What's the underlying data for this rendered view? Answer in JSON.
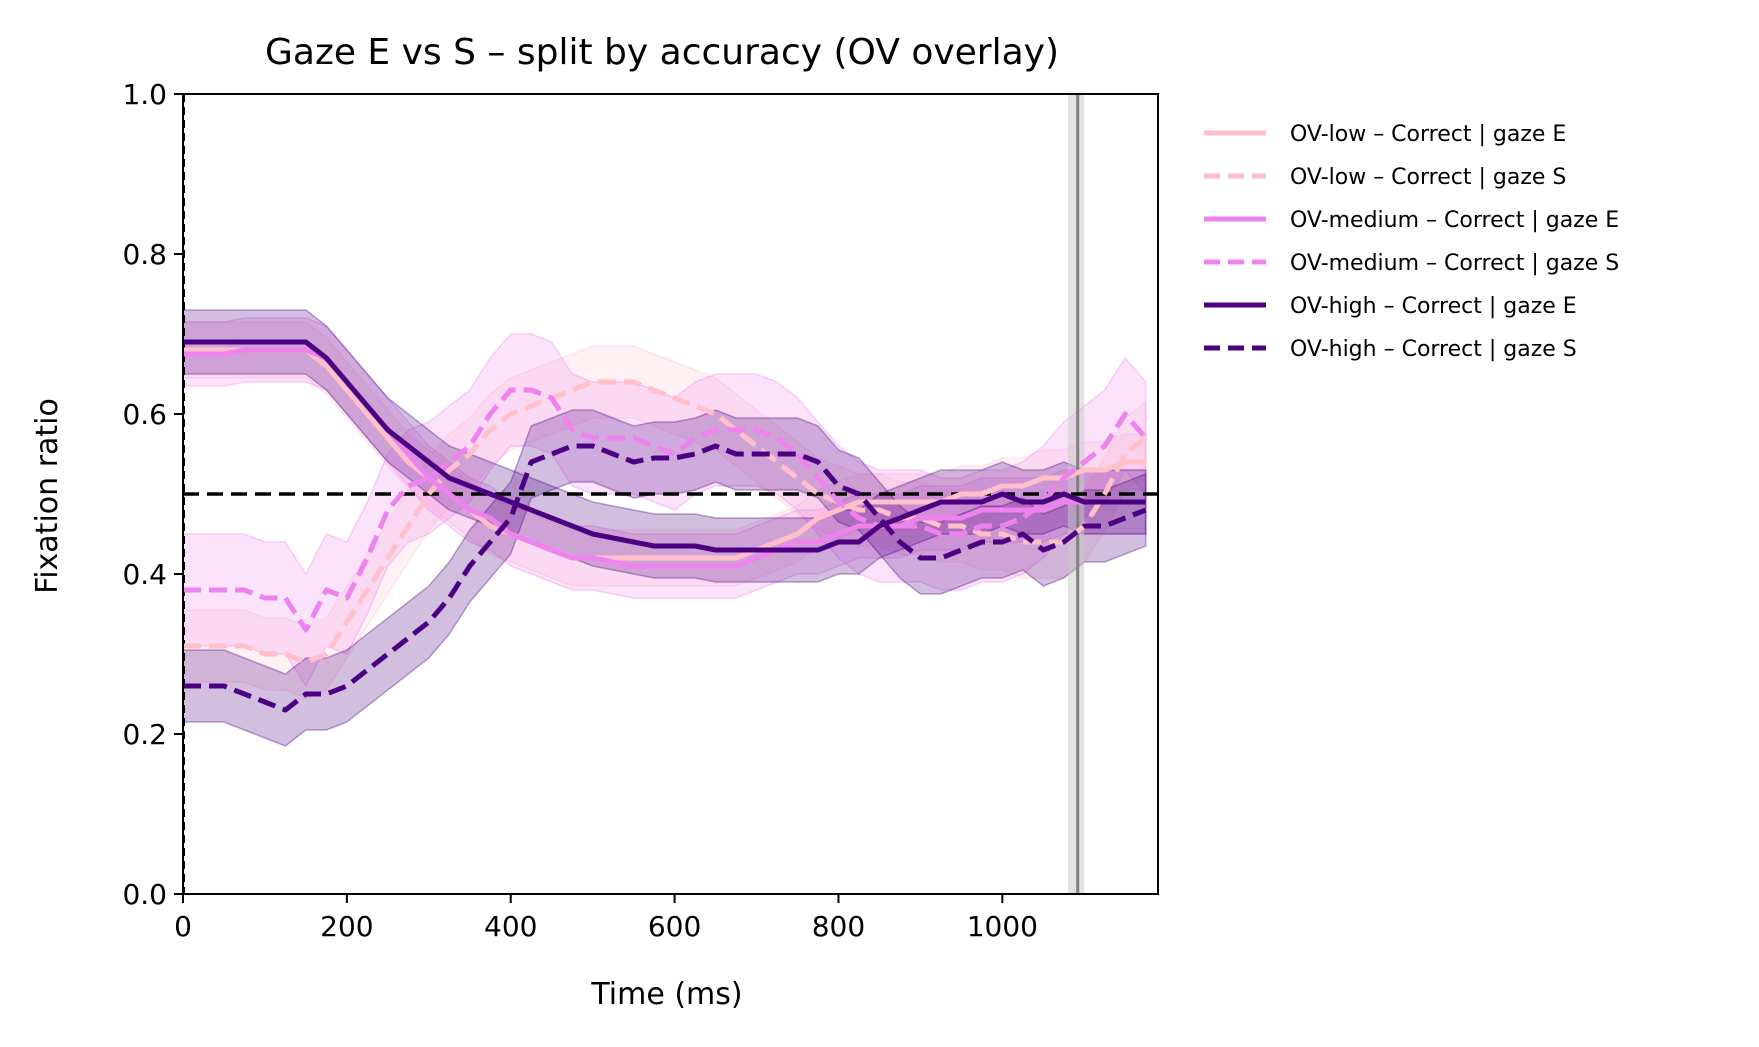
{
  "chart_data": {
    "type": "line",
    "title": "Gaze E vs S – split by accuracy (OV overlay)",
    "xlabel": "Time (ms)",
    "ylabel": "Fixation ratio",
    "xlim": [
      0,
      1190
    ],
    "ylim": [
      0,
      1
    ],
    "xticks": [
      "0",
      "200",
      "400",
      "600",
      "800",
      "1000"
    ],
    "xtick_values": [
      0,
      200,
      400,
      600,
      800,
      1000
    ],
    "yticks": [
      "0.0",
      "0.2",
      "0.4",
      "0.6",
      "0.8",
      "1.0"
    ],
    "ytick_values": [
      0,
      0.2,
      0.4,
      0.6,
      0.8,
      1.0
    ],
    "grid": false,
    "legend_position": "outside-right",
    "reference_line_y": 0.5,
    "vertical_line_x": 1092,
    "vertical_band": [
      1080,
      1100
    ],
    "colors": {
      "low": "#ffc0cb",
      "medium": "#ee82ee",
      "high": "#4b0082",
      "reference": "#000000",
      "vertical": "#808080"
    },
    "x": [
      0,
      25,
      50,
      75,
      100,
      125,
      150,
      175,
      200,
      225,
      250,
      275,
      300,
      325,
      350,
      375,
      400,
      425,
      450,
      475,
      500,
      525,
      550,
      575,
      600,
      625,
      650,
      675,
      700,
      725,
      750,
      775,
      800,
      825,
      850,
      875,
      900,
      925,
      950,
      975,
      1000,
      1025,
      1050,
      1075,
      1100,
      1125,
      1150,
      1175
    ],
    "series": [
      {
        "name": "OV-low – Correct | gaze E",
        "group": "low",
        "style": "solid",
        "values": [
          0.68,
          0.68,
          0.68,
          0.68,
          0.68,
          0.68,
          0.68,
          0.66,
          0.63,
          0.6,
          0.57,
          0.54,
          0.52,
          0.5,
          0.48,
          0.46,
          0.45,
          0.44,
          0.43,
          0.42,
          0.42,
          0.42,
          0.42,
          0.42,
          0.42,
          0.42,
          0.42,
          0.42,
          0.43,
          0.44,
          0.45,
          0.47,
          0.48,
          0.49,
          0.49,
          0.49,
          0.49,
          0.49,
          0.5,
          0.5,
          0.51,
          0.51,
          0.52,
          0.52,
          0.53,
          0.53,
          0.54,
          0.54
        ],
        "band": 0.035
      },
      {
        "name": "OV-low – Correct | gaze S",
        "group": "low",
        "style": "dashed",
        "values": [
          0.31,
          0.31,
          0.31,
          0.31,
          0.3,
          0.3,
          0.29,
          0.3,
          0.34,
          0.38,
          0.42,
          0.46,
          0.5,
          0.53,
          0.55,
          0.58,
          0.6,
          0.61,
          0.62,
          0.63,
          0.64,
          0.64,
          0.64,
          0.63,
          0.62,
          0.61,
          0.6,
          0.58,
          0.56,
          0.54,
          0.52,
          0.5,
          0.49,
          0.48,
          0.48,
          0.47,
          0.47,
          0.46,
          0.46,
          0.45,
          0.45,
          0.44,
          0.44,
          0.44,
          0.46,
          0.5,
          0.55,
          0.57
        ],
        "band": 0.045
      },
      {
        "name": "OV-medium – Correct | gaze E",
        "group": "medium",
        "style": "solid",
        "values": [
          0.675,
          0.675,
          0.675,
          0.68,
          0.68,
          0.68,
          0.68,
          0.67,
          0.64,
          0.61,
          0.58,
          0.55,
          0.52,
          0.5,
          0.48,
          0.47,
          0.45,
          0.44,
          0.43,
          0.42,
          0.42,
          0.415,
          0.41,
          0.41,
          0.41,
          0.41,
          0.41,
          0.41,
          0.42,
          0.43,
          0.44,
          0.44,
          0.45,
          0.46,
          0.46,
          0.46,
          0.47,
          0.47,
          0.47,
          0.48,
          0.48,
          0.48,
          0.48,
          0.49,
          0.49,
          0.49,
          0.49,
          0.49
        ],
        "band": 0.04
      },
      {
        "name": "OV-medium – Correct | gaze S",
        "group": "medium",
        "style": "dashed",
        "values": [
          0.38,
          0.38,
          0.38,
          0.38,
          0.37,
          0.37,
          0.33,
          0.38,
          0.37,
          0.42,
          0.48,
          0.51,
          0.52,
          0.54,
          0.56,
          0.6,
          0.63,
          0.63,
          0.62,
          0.58,
          0.57,
          0.57,
          0.57,
          0.56,
          0.55,
          0.57,
          0.58,
          0.58,
          0.58,
          0.57,
          0.55,
          0.52,
          0.49,
          0.47,
          0.46,
          0.46,
          0.46,
          0.45,
          0.45,
          0.46,
          0.46,
          0.47,
          0.49,
          0.52,
          0.54,
          0.56,
          0.6,
          0.57
        ],
        "band": 0.07
      },
      {
        "name": "OV-high – Correct | gaze E",
        "group": "high",
        "style": "solid",
        "values": [
          0.69,
          0.69,
          0.69,
          0.69,
          0.69,
          0.69,
          0.69,
          0.67,
          0.64,
          0.61,
          0.58,
          0.56,
          0.54,
          0.52,
          0.51,
          0.5,
          0.49,
          0.48,
          0.47,
          0.46,
          0.45,
          0.445,
          0.44,
          0.435,
          0.435,
          0.435,
          0.43,
          0.43,
          0.43,
          0.43,
          0.43,
          0.43,
          0.44,
          0.44,
          0.46,
          0.47,
          0.48,
          0.49,
          0.49,
          0.49,
          0.5,
          0.49,
          0.49,
          0.5,
          0.49,
          0.49,
          0.49,
          0.49
        ],
        "band": 0.04
      },
      {
        "name": "OV-high – Correct | gaze S",
        "group": "high",
        "style": "dashed",
        "values": [
          0.26,
          0.26,
          0.26,
          0.25,
          0.24,
          0.23,
          0.25,
          0.25,
          0.26,
          0.28,
          0.3,
          0.32,
          0.34,
          0.37,
          0.41,
          0.44,
          0.47,
          0.54,
          0.55,
          0.56,
          0.56,
          0.55,
          0.54,
          0.545,
          0.545,
          0.55,
          0.56,
          0.55,
          0.55,
          0.55,
          0.55,
          0.54,
          0.51,
          0.5,
          0.47,
          0.44,
          0.42,
          0.42,
          0.43,
          0.44,
          0.44,
          0.45,
          0.43,
          0.44,
          0.46,
          0.46,
          0.47,
          0.48
        ],
        "band": 0.045
      }
    ]
  }
}
